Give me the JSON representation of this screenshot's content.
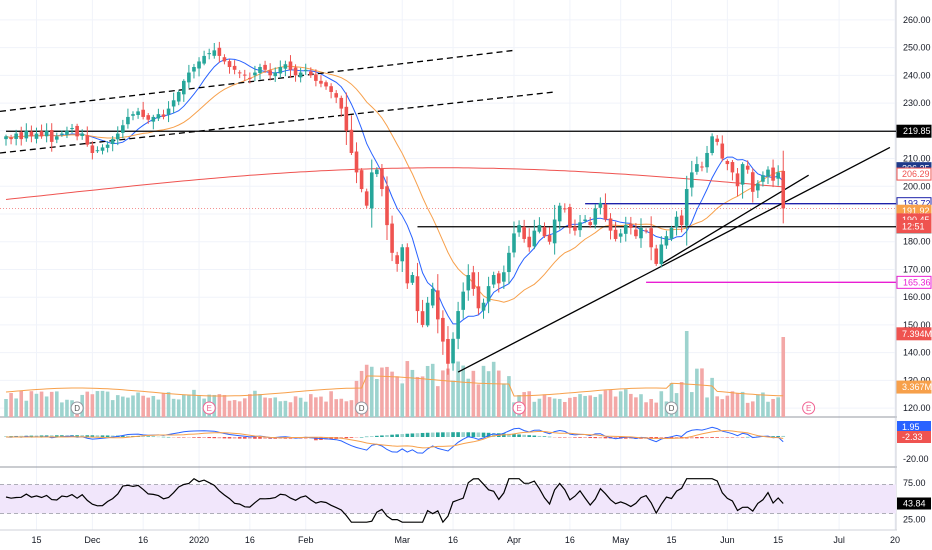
{
  "chart_data": {
    "type": "candlestick",
    "price_axis": {
      "range": [
        115,
        265
      ],
      "ticks": [
        "260.00",
        "250.00",
        "240.00",
        "230.00",
        "220.00",
        "210.00",
        "200.00",
        "190.00",
        "180.00",
        "170.00",
        "160.00",
        "150.00",
        "140.00",
        "130.00",
        "120.00"
      ]
    },
    "date_axis": {
      "ticks": [
        {
          "label": "15",
          "i": 6
        },
        {
          "label": "Dec",
          "i": 17
        },
        {
          "label": "16",
          "i": 27
        },
        {
          "label": "2020",
          "i": 38
        },
        {
          "label": "16",
          "i": 48
        },
        {
          "label": "Feb",
          "i": 59
        },
        {
          "label": "Mar",
          "i": 78
        },
        {
          "label": "16",
          "i": 88
        },
        {
          "label": "Apr",
          "i": 100
        },
        {
          "label": "16",
          "i": 111
        },
        {
          "label": "May",
          "i": 121
        },
        {
          "label": "15",
          "i": 131
        },
        {
          "label": "Jun",
          "i": 142
        },
        {
          "label": "15",
          "i": 152
        },
        {
          "label": "Jul",
          "i": 164
        },
        {
          "label": "20",
          "i": 175
        }
      ]
    },
    "closes": [
      218,
      217,
      219,
      217,
      220,
      218,
      219,
      218,
      220,
      216,
      218,
      219,
      220,
      221,
      218,
      219,
      215,
      212,
      213,
      214,
      215,
      217,
      219,
      222,
      225,
      226,
      227,
      225,
      224,
      225,
      226,
      225,
      228,
      231,
      234,
      238,
      241,
      243,
      245,
      247,
      248,
      249,
      247,
      245,
      243,
      242,
      241,
      240,
      239,
      241,
      243,
      242,
      240,
      241,
      243,
      244,
      242,
      240,
      241,
      242,
      240,
      238,
      237,
      236,
      234,
      232,
      228,
      220,
      212,
      205,
      199,
      193,
      205,
      206,
      199,
      186,
      176,
      172,
      178,
      165,
      168,
      155,
      150,
      158,
      163,
      152,
      144,
      136,
      145,
      155,
      162,
      168,
      163,
      156,
      158,
      164,
      168,
      165,
      169,
      176,
      183,
      186,
      181,
      178,
      184,
      186,
      182,
      180,
      188,
      193,
      192,
      185,
      184,
      187,
      188,
      186,
      192,
      194,
      188,
      184,
      181,
      183,
      186,
      185,
      182,
      185,
      184,
      178,
      172,
      179,
      182,
      185,
      189,
      186,
      199,
      205,
      208,
      207,
      212,
      218,
      216,
      210,
      208,
      205,
      200,
      208,
      206,
      198,
      201,
      204,
      206,
      202,
      205,
      192
    ],
    "ma_series": [
      {
        "color": "#2962ff"
      },
      {
        "color": "#f7a04b"
      },
      {
        "color": "#ef5350"
      }
    ],
    "horizontal_levels": [
      {
        "price": 219.85,
        "color": "#000000",
        "label": "219.85",
        "from": 0
      },
      {
        "price": 193.72,
        "color": "#1e22aa",
        "label": "193.72",
        "from": 114
      },
      {
        "price": 185.4,
        "color": "#000000",
        "label": "185.40",
        "from": 81
      },
      {
        "price": 165.36,
        "color": "#e91ed3",
        "label": "165.36",
        "from": 126
      }
    ],
    "price_tags": [
      {
        "label": "206.35",
        "price": 206.35,
        "bg": "#1e3a8a",
        "fg": "#ffffff"
      },
      {
        "label": "206.29",
        "price": 204.4,
        "bg": "#ffffff",
        "fg": "#ef5350",
        "border": "#ef5350"
      },
      {
        "label": "191.92",
        "price": 191.0,
        "bg": "#f7a04b",
        "fg": "#ffffff"
      },
      {
        "label": "190.45",
        "price": 187.9,
        "bg": "#ef5350",
        "fg": "#ffffff"
      },
      {
        "label": "12:51",
        "price": 185.5,
        "bg": "#ef5350",
        "fg": "#ffffff"
      },
      {
        "label": "7.394M",
        "price": 146.8,
        "bg": "#ef5350",
        "fg": "#ffffff"
      },
      {
        "label": "3.367M",
        "price": 127.6,
        "bg": "#f7a04b",
        "fg": "#ffffff"
      }
    ],
    "events": [
      {
        "i": 14,
        "type": "D"
      },
      {
        "i": 40,
        "type": "E"
      },
      {
        "i": 70,
        "type": "D"
      },
      {
        "i": 101,
        "type": "E"
      },
      {
        "i": 131,
        "type": "D"
      },
      {
        "i": 158,
        "type": "E"
      }
    ],
    "macd": {
      "values": [
        "1.95",
        "-2.33"
      ],
      "ticks": [
        "-20.00"
      ]
    },
    "rsi": {
      "value": "43.84",
      "ticks": [
        "75.00",
        "25.00"
      ],
      "band": [
        30,
        70
      ]
    }
  }
}
